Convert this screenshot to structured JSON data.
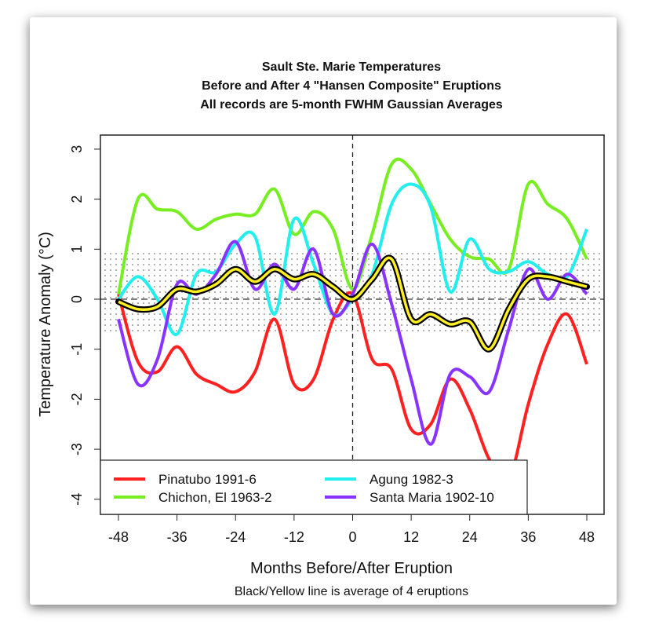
{
  "chart_data": {
    "type": "line",
    "title": [
      "Sault Ste. Marie Temperatures",
      "Before and After 4 \"Hansen Composite\" Eruptions",
      "All records are 5-month FWHM Gaussian Averages"
    ],
    "xlabel": "Months Before/After Eruption",
    "ylabel": "Temperature Anomaly (°C)",
    "caption": "Black/Yellow line is average of 4 eruptions",
    "xlim": [
      -48,
      48
    ],
    "ylim": [
      -4,
      3
    ],
    "xticks": [
      -48,
      -36,
      -24,
      -12,
      0,
      12,
      24,
      36,
      48
    ],
    "yticks": [
      3,
      2,
      1,
      0,
      -1,
      -2,
      -3,
      -4
    ],
    "shade_band": [
      -0.7,
      1
    ],
    "legend_position": "bottom-left",
    "x": [
      -48,
      -44,
      -40,
      -36,
      -32,
      -28,
      -24,
      -20,
      -16,
      -12,
      -8,
      -4,
      0,
      4,
      8,
      12,
      16,
      20,
      24,
      28,
      32,
      36,
      40,
      44,
      48
    ],
    "series": [
      {
        "name": "Pinatubo 1991-6",
        "color": "#ff2020",
        "values": [
          0.1,
          -1.25,
          -1.45,
          -0.95,
          -1.5,
          -1.7,
          -1.85,
          -1.45,
          -0.4,
          -1.7,
          -1.6,
          -0.4,
          0.1,
          -1.2,
          -1.4,
          -2.6,
          -2.5,
          -1.6,
          -2.2,
          -3.2,
          -3.6,
          -2.1,
          -0.9,
          -0.3,
          -1.3
        ]
      },
      {
        "name": "Chichon, El 1963-2",
        "color": "#77ee22",
        "values": [
          0.1,
          2.0,
          1.8,
          1.75,
          1.4,
          1.6,
          1.7,
          1.7,
          2.2,
          1.3,
          1.75,
          1.4,
          0.2,
          1.3,
          2.7,
          2.6,
          1.9,
          1.2,
          0.85,
          0.8,
          0.6,
          2.3,
          1.9,
          1.6,
          0.8
        ]
      },
      {
        "name": "Agung 1982-3",
        "color": "#22eeee",
        "values": [
          0.0,
          0.45,
          0.0,
          -0.7,
          0.5,
          0.55,
          1.1,
          1.25,
          -0.3,
          1.6,
          0.7,
          -0.3,
          0.0,
          0.5,
          1.9,
          2.3,
          1.85,
          0.15,
          1.2,
          0.6,
          0.55,
          0.75,
          0.5,
          0.45,
          1.4
        ]
      },
      {
        "name": "Santa Maria 1902-10",
        "color": "#8833ff",
        "values": [
          -0.4,
          -1.7,
          -1.2,
          0.3,
          0.1,
          0.5,
          1.15,
          0.2,
          0.7,
          0.2,
          1.0,
          -0.3,
          0.1,
          1.1,
          -0.1,
          -1.6,
          -2.9,
          -1.5,
          -1.55,
          -1.85,
          -0.6,
          0.6,
          0.0,
          0.5,
          0.1
        ]
      },
      {
        "name": "Average of 4 eruptions",
        "color": "#ffee22",
        "values": [
          -0.05,
          -0.2,
          -0.15,
          0.2,
          0.15,
          0.3,
          0.6,
          0.35,
          0.6,
          0.4,
          0.5,
          0.25,
          0.0,
          0.4,
          0.8,
          -0.4,
          -0.3,
          -0.5,
          -0.45,
          -1.0,
          -0.2,
          0.4,
          0.45,
          0.35,
          0.25
        ]
      }
    ]
  }
}
